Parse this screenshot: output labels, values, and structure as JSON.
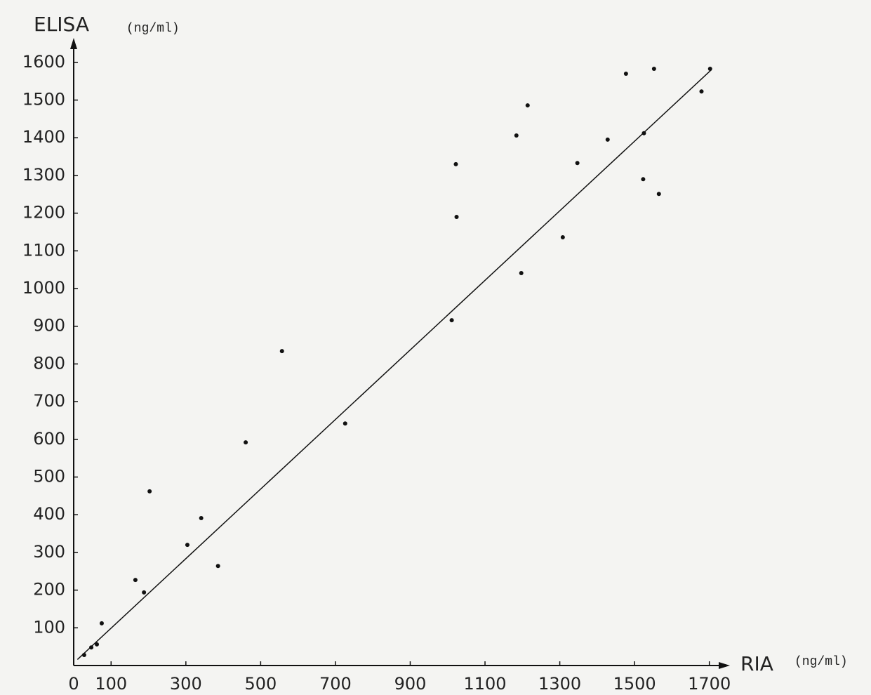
{
  "chart_data": {
    "type": "scatter",
    "x_label": "RIA",
    "x_unit": "(ng/ml)",
    "y_label": "ELISA",
    "y_unit": "(ng/ml)",
    "xlim": [
      0,
      1740
    ],
    "ylim": [
      0,
      1650
    ],
    "xticks": [
      0,
      100,
      300,
      500,
      700,
      900,
      1100,
      1300,
      1500,
      1700
    ],
    "yticks": [
      100,
      200,
      300,
      400,
      500,
      600,
      700,
      800,
      900,
      1000,
      1100,
      1200,
      1300,
      1400,
      1500,
      1600
    ],
    "series": [
      {
        "color": "#111111",
        "x": [
          28,
          47,
          62,
          75,
          165,
          188,
          203,
          304,
          341,
          386,
          460,
          557,
          726,
          1011,
          1022,
          1024,
          1184,
          1197,
          1214,
          1308,
          1347,
          1428,
          1477,
          1525,
          1523,
          1552,
          1565,
          1679,
          1702
        ],
        "values": [
          28,
          48,
          56,
          112,
          227,
          194,
          462,
          320,
          391,
          264,
          592,
          834,
          642,
          916,
          1330,
          1190,
          1406,
          1041,
          1486,
          1136,
          1333,
          1395,
          1570,
          1412,
          1290,
          1583,
          1251,
          1523,
          1583
        ]
      },
      {
        "type": "line",
        "color": "#111111",
        "x": [
          10,
          1705
        ],
        "values": [
          16,
          1580
        ]
      }
    ]
  }
}
